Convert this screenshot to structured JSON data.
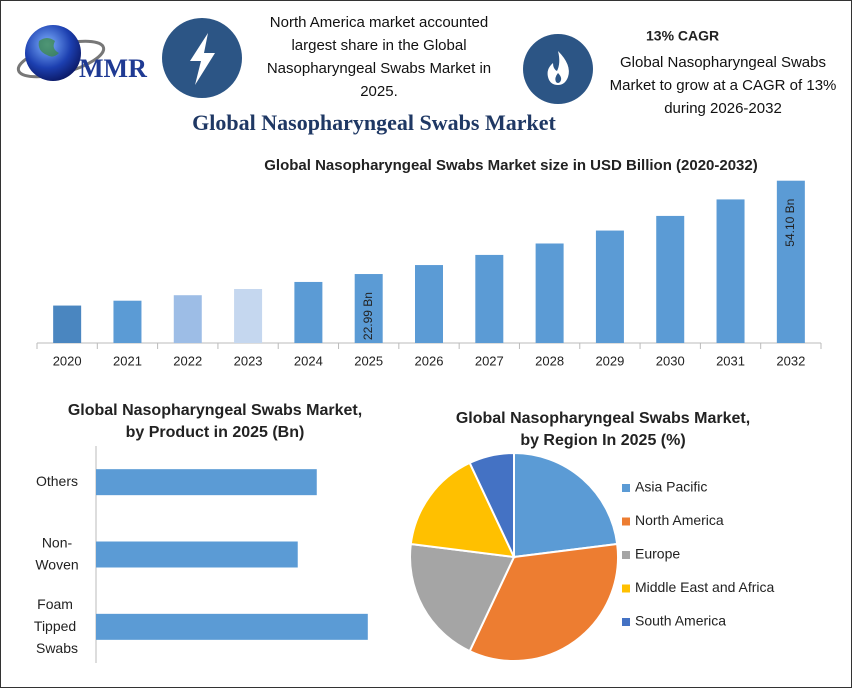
{
  "header": {
    "logo_text": "MMR",
    "left_note": "North America market accounted largest share in the Global Nasopharyngeal Swabs Market in 2025.",
    "cagr_title": "13% CAGR",
    "cagr_text": "Global Nasopharyngeal Swabs Market to grow at a CAGR of 13% during 2026-2032"
  },
  "title": "Global Nasopharyngeal Swabs Market",
  "chart_data": [
    {
      "type": "bar",
      "title": [
        "Global Nasopharyngeal Swabs Market size in USD Billion (2020-2032)"
      ],
      "categories": [
        "2020",
        "2021",
        "2022",
        "2023",
        "2024",
        "2025",
        "2026",
        "2027",
        "2028",
        "2029",
        "2030",
        "2031",
        "2032"
      ],
      "values": [
        12.48,
        14.1,
        15.93,
        18.0,
        20.35,
        22.99,
        25.98,
        29.36,
        33.17,
        37.48,
        42.36,
        47.86,
        54.1
      ],
      "value_labels": [
        null,
        null,
        null,
        null,
        null,
        "22.99 Bn",
        null,
        null,
        null,
        null,
        null,
        null,
        "54.10 Bn"
      ],
      "colors": [
        "#4a86c0",
        "#5b9bd5",
        "#9dbde6",
        "#c5d7ef",
        "#5b9bd5",
        "#5b9bd5",
        "#5b9bd5",
        "#5b9bd5",
        "#5b9bd5",
        "#5b9bd5",
        "#5b9bd5",
        "#5b9bd5",
        "#5b9bd5"
      ],
      "ylim": [
        0,
        56
      ]
    },
    {
      "type": "barh",
      "title": [
        "Global Nasopharyngeal Swabs Market,",
        "by Product  in 2025 (Bn)"
      ],
      "categories": [
        "Others",
        "Non-Woven",
        "Foam Tipped Swabs"
      ],
      "values": [
        7.31,
        6.68,
        9.0
      ],
      "color": "#5b9bd5",
      "xlim": [
        0,
        10
      ]
    },
    {
      "type": "pie",
      "title": [
        "Global Nasopharyngeal Swabs Market,",
        "by Region In 2025 (%)"
      ],
      "series": [
        {
          "name": "Asia Pacific",
          "color": "#5b9bd5",
          "value": 23
        },
        {
          "name": "North America",
          "color": "#ed7d31",
          "value": 34
        },
        {
          "name": "Europe",
          "color": "#a5a5a5",
          "value": 20
        },
        {
          "name": "Middle East and Africa",
          "color": "#ffc000",
          "value": 16
        },
        {
          "name": "South America",
          "color": "#4472c4",
          "value": 7
        }
      ],
      "legend": "right"
    }
  ]
}
